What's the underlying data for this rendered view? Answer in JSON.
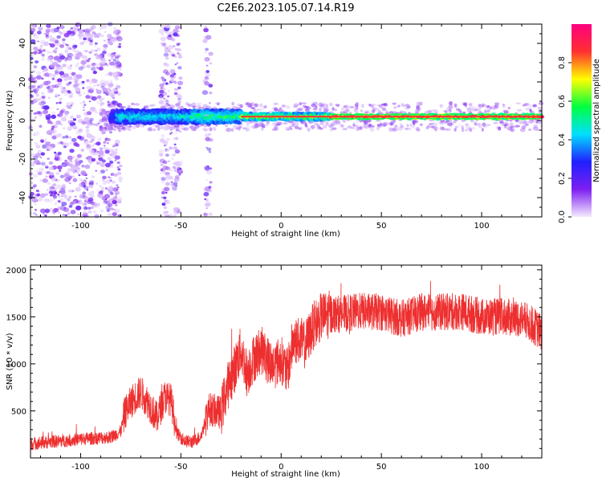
{
  "figure": {
    "title": "C2E6.2023.105.07.14.R19"
  },
  "chart_data": [
    {
      "type": "heatmap",
      "xlabel": "Height of straight line (km)",
      "ylabel": "Frequency (Hz)",
      "xlim": [
        -125,
        130
      ],
      "ylim": [
        -50,
        50
      ],
      "xticks": [
        -100,
        -50,
        0,
        50,
        100
      ],
      "yticks": [
        -40,
        -20,
        0,
        20,
        40
      ],
      "colorbar": {
        "label": "Normalized spectral amplitude",
        "range": [
          0,
          1
        ],
        "ticks": [
          0.0,
          0.2,
          0.4,
          0.6,
          0.8
        ],
        "colormap": [
          "#f5eaff",
          "#7d1ff0",
          "#2020ff",
          "#00e0ff",
          "#00ff40",
          "#ffff00",
          "#ff3030",
          "#ff0080"
        ]
      },
      "carrier_frequency_hz": 2,
      "noise_regions_km": [
        [
          -125,
          -80
        ],
        [
          -60,
          -50
        ],
        [
          -38,
          -35
        ]
      ]
    },
    {
      "type": "line",
      "xlabel": "Height of straight line (km)",
      "ylabel": "SNR (10 * v/v)",
      "xlim": [
        -125,
        130
      ],
      "ylim": [
        0,
        2050
      ],
      "xticks": [
        -100,
        -50,
        0,
        50,
        100
      ],
      "yticks": [
        500,
        1000,
        1500,
        2000
      ],
      "color": "#ee2f2f",
      "envelope": {
        "x": [
          -125,
          -100,
          -85,
          -80,
          -78,
          -74,
          -70,
          -66,
          -62,
          -58,
          -55,
          -52,
          -48,
          -44,
          -40,
          -36,
          -33,
          -30,
          -27,
          -24,
          -20,
          -17,
          -14,
          -10,
          -7,
          -4,
          0,
          3,
          6,
          9,
          12,
          16,
          20,
          25,
          30,
          40,
          50,
          60,
          70,
          80,
          90,
          100,
          110,
          120,
          125,
          130
        ],
        "y": [
          150,
          200,
          220,
          280,
          480,
          620,
          700,
          580,
          420,
          650,
          620,
          260,
          180,
          170,
          230,
          520,
          500,
          480,
          750,
          900,
          1150,
          900,
          1050,
          1150,
          1050,
          980,
          1050,
          900,
          1250,
          1250,
          1200,
          1400,
          1500,
          1530,
          1530,
          1560,
          1550,
          1480,
          1550,
          1550,
          1560,
          1500,
          1500,
          1480,
          1420,
          1330
        ]
      }
    }
  ]
}
